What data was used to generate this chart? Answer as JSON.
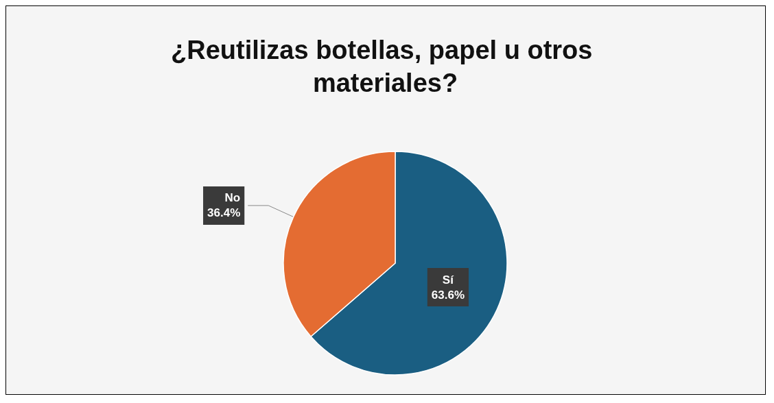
{
  "chart_data": {
    "type": "pie",
    "title": "¿Reutilizas botellas, papel u otros materiales?",
    "categories": [
      "Sí",
      "No"
    ],
    "values": [
      63.6,
      36.4
    ],
    "colors": [
      "#1a5e82",
      "#e46c32"
    ],
    "value_labels": [
      "63.6%",
      "36.4%"
    ]
  }
}
